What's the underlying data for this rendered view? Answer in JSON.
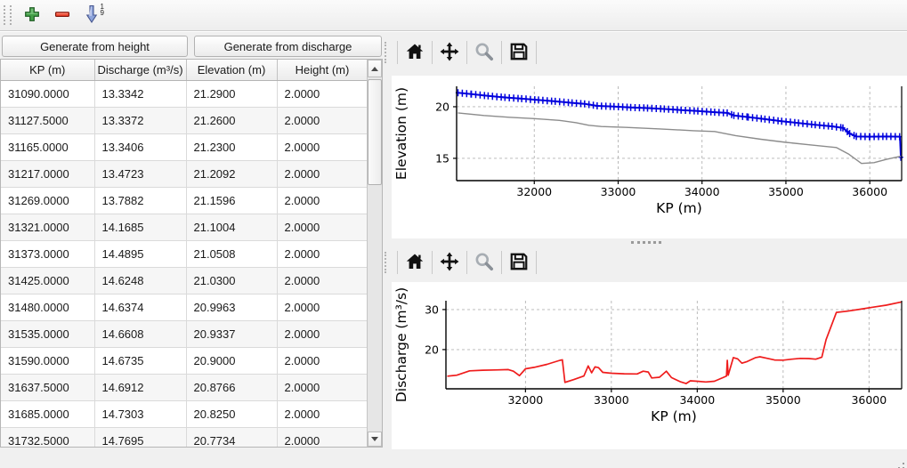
{
  "toolbar": {
    "sort_digit_top": "1",
    "sort_digit_bottom": "9"
  },
  "buttons": {
    "generate_height": "Generate from height",
    "generate_discharge": "Generate from discharge"
  },
  "table": {
    "columns": [
      "KP (m)",
      "Discharge (m³/s)",
      "Elevation (m)",
      "Height (m)"
    ],
    "rows": [
      [
        "31090.0000",
        "13.3342",
        "21.2900",
        "2.0000"
      ],
      [
        "31127.5000",
        "13.3372",
        "21.2600",
        "2.0000"
      ],
      [
        "31165.0000",
        "13.3406",
        "21.2300",
        "2.0000"
      ],
      [
        "31217.0000",
        "13.4723",
        "21.2092",
        "2.0000"
      ],
      [
        "31269.0000",
        "13.7882",
        "21.1596",
        "2.0000"
      ],
      [
        "31321.0000",
        "14.1685",
        "21.1004",
        "2.0000"
      ],
      [
        "31373.0000",
        "14.4895",
        "21.0508",
        "2.0000"
      ],
      [
        "31425.0000",
        "14.6248",
        "21.0300",
        "2.0000"
      ],
      [
        "31480.0000",
        "14.6374",
        "20.9963",
        "2.0000"
      ],
      [
        "31535.0000",
        "14.6608",
        "20.9337",
        "2.0000"
      ],
      [
        "31590.0000",
        "14.6735",
        "20.9000",
        "2.0000"
      ],
      [
        "31637.5000",
        "14.6912",
        "20.8766",
        "2.0000"
      ],
      [
        "31685.0000",
        "14.7303",
        "20.8250",
        "2.0000"
      ],
      [
        "31732.5000",
        "14.7695",
        "20.7734",
        "2.0000"
      ]
    ]
  },
  "chart_data": [
    {
      "type": "line",
      "title": "",
      "xlabel": "KP (m)",
      "ylabel": "Elevation (m)",
      "xlim": [
        31074,
        36380
      ],
      "ylim": [
        12.84,
        21.98
      ],
      "xticks": [
        32000,
        33000,
        34000,
        35000,
        36000
      ],
      "yticks": [
        15,
        20
      ],
      "grid": "dashed",
      "legend": "none",
      "series": [
        {
          "name": "water-elevation",
          "color": "#0000dd",
          "width": 2,
          "marker": "plus",
          "marker_step": 52,
          "points": [
            [
              31090,
              21.35
            ],
            [
              31250,
              21.22
            ],
            [
              31450,
              21.05
            ],
            [
              31650,
              20.9
            ],
            [
              31850,
              20.78
            ],
            [
              32050,
              20.65
            ],
            [
              32250,
              20.52
            ],
            [
              32450,
              20.38
            ],
            [
              32600,
              20.28
            ],
            [
              32750,
              20.08
            ],
            [
              32950,
              20.02
            ],
            [
              33150,
              19.93
            ],
            [
              33350,
              19.87
            ],
            [
              33550,
              19.78
            ],
            [
              33750,
              19.68
            ],
            [
              33950,
              19.58
            ],
            [
              34150,
              19.47
            ],
            [
              34300,
              19.4
            ],
            [
              34380,
              19.15
            ],
            [
              34550,
              19.0
            ],
            [
              34750,
              18.8
            ],
            [
              34950,
              18.6
            ],
            [
              35150,
              18.42
            ],
            [
              35350,
              18.25
            ],
            [
              35550,
              18.1
            ],
            [
              35680,
              17.95
            ],
            [
              35760,
              17.4
            ],
            [
              35840,
              17.12
            ],
            [
              36000,
              17.1
            ],
            [
              36200,
              17.12
            ],
            [
              36360,
              17.1
            ],
            [
              36370,
              15.1
            ]
          ]
        },
        {
          "name": "ground-elevation",
          "color": "#8c8c8c",
          "width": 1.4,
          "marker": "none",
          "points": [
            [
              31090,
              19.4
            ],
            [
              31400,
              19.15
            ],
            [
              31700,
              18.98
            ],
            [
              32000,
              18.85
            ],
            [
              32300,
              18.68
            ],
            [
              32500,
              18.45
            ],
            [
              32650,
              18.2
            ],
            [
              32800,
              18.08
            ],
            [
              33100,
              18.0
            ],
            [
              33500,
              17.85
            ],
            [
              33900,
              17.68
            ],
            [
              34150,
              17.6
            ],
            [
              34400,
              17.2
            ],
            [
              34700,
              16.85
            ],
            [
              35000,
              16.55
            ],
            [
              35300,
              16.3
            ],
            [
              35600,
              16.05
            ],
            [
              35750,
              15.4
            ],
            [
              35900,
              14.5
            ],
            [
              36050,
              14.58
            ],
            [
              36200,
              14.9
            ],
            [
              36370,
              15.2
            ]
          ]
        }
      ]
    },
    {
      "type": "line",
      "title": "",
      "xlabel": "KP (m)",
      "ylabel": "Discharge (m³/s)",
      "xlim": [
        31074,
        36380
      ],
      "ylim": [
        10.2,
        32.2
      ],
      "xticks": [
        32000,
        33000,
        34000,
        35000,
        36000
      ],
      "yticks": [
        20,
        30
      ],
      "grid": "dashed",
      "legend": "none",
      "series": [
        {
          "name": "discharge",
          "color": "#ef1c1c",
          "width": 1.7,
          "marker": "none",
          "points": [
            [
              31090,
              13.35
            ],
            [
              31200,
              13.6
            ],
            [
              31350,
              14.7
            ],
            [
              31500,
              14.85
            ],
            [
              31650,
              14.9
            ],
            [
              31800,
              15.0
            ],
            [
              31860,
              14.6
            ],
            [
              31930,
              13.5
            ],
            [
              32000,
              15.2
            ],
            [
              32100,
              15.55
            ],
            [
              32250,
              16.3
            ],
            [
              32400,
              17.3
            ],
            [
              32430,
              17.45
            ],
            [
              32460,
              11.8
            ],
            [
              32560,
              12.5
            ],
            [
              32680,
              13.4
            ],
            [
              32730,
              15.9
            ],
            [
              32770,
              14.2
            ],
            [
              32810,
              15.7
            ],
            [
              32850,
              15.5
            ],
            [
              32900,
              14.3
            ],
            [
              33000,
              14.1
            ],
            [
              33150,
              13.95
            ],
            [
              33300,
              13.9
            ],
            [
              33370,
              14.6
            ],
            [
              33430,
              14.4
            ],
            [
              33470,
              12.9
            ],
            [
              33560,
              13.1
            ],
            [
              33640,
              14.6
            ],
            [
              33700,
              13.0
            ],
            [
              33800,
              12.0
            ],
            [
              33870,
              11.5
            ],
            [
              33920,
              12.2
            ],
            [
              34000,
              12.1
            ],
            [
              34100,
              11.9
            ],
            [
              34200,
              12.1
            ],
            [
              34300,
              13.0
            ],
            [
              34340,
              13.4
            ],
            [
              34350,
              17.3
            ],
            [
              34360,
              13.6
            ],
            [
              34420,
              18.0
            ],
            [
              34470,
              17.7
            ],
            [
              34520,
              16.6
            ],
            [
              34580,
              17.0
            ],
            [
              34680,
              18.0
            ],
            [
              34730,
              18.2
            ],
            [
              34800,
              17.9
            ],
            [
              34900,
              17.4
            ],
            [
              35000,
              17.35
            ],
            [
              35100,
              17.6
            ],
            [
              35200,
              17.8
            ],
            [
              35300,
              17.75
            ],
            [
              35380,
              17.6
            ],
            [
              35450,
              18.1
            ],
            [
              35500,
              22.5
            ],
            [
              35620,
              29.3
            ],
            [
              35750,
              29.6
            ],
            [
              35900,
              30.1
            ],
            [
              36050,
              30.6
            ],
            [
              36200,
              31.1
            ],
            [
              36375,
              31.9
            ]
          ]
        }
      ]
    }
  ]
}
